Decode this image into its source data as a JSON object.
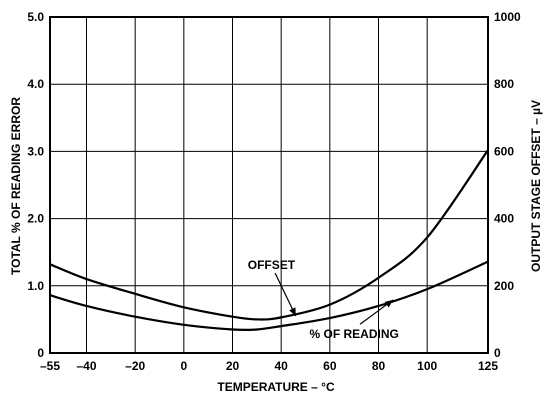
{
  "chart_data": {
    "type": "line",
    "xlabel": "TEMPERATURE – °C",
    "ylabel_left": "TOTAL % OF READING ERROR",
    "ylabel_right": "OUTPUT STAGE OFFSET – µV",
    "xlim": [
      -55,
      125
    ],
    "ylim_left": [
      0,
      5
    ],
    "ylim_right": [
      0,
      1000
    ],
    "x_ticks": [
      -55,
      -40,
      -20,
      0,
      20,
      40,
      60,
      80,
      100,
      125
    ],
    "x_tick_labels": [
      "–55",
      "–40",
      "–20",
      "0",
      "20",
      "40",
      "60",
      "80",
      "100",
      "125"
    ],
    "y_left_ticks": [
      0,
      1,
      2,
      3,
      4,
      5
    ],
    "y_left_tick_labels": [
      "0",
      "1.0",
      "2.0",
      "3.0",
      "4.0",
      "5.0"
    ],
    "y_right_ticks": [
      0,
      200,
      400,
      600,
      800,
      1000
    ],
    "y_right_tick_labels": [
      "0",
      "200",
      "400",
      "600",
      "800",
      "1000"
    ],
    "grid": true,
    "series": [
      {
        "name": "OFFSET",
        "axis": "left",
        "x": [
          -55,
          -40,
          -20,
          0,
          20,
          30,
          40,
          60,
          80,
          100,
          125
        ],
        "y": [
          1.32,
          1.1,
          0.88,
          0.68,
          0.54,
          0.5,
          0.53,
          0.72,
          1.12,
          1.72,
          3.02
        ]
      },
      {
        "name": "% OF READING",
        "axis": "left",
        "x": [
          -55,
          -40,
          -20,
          0,
          20,
          30,
          40,
          60,
          80,
          100,
          125
        ],
        "y": [
          0.86,
          0.7,
          0.54,
          0.42,
          0.35,
          0.35,
          0.4,
          0.52,
          0.7,
          0.95,
          1.36
        ]
      }
    ],
    "annotations": [
      {
        "text": "OFFSET",
        "x": 36,
        "y": 1.25,
        "arrow_to": [
          46,
          0.55
        ]
      },
      {
        "text": "% OF READING",
        "x": 70,
        "y": 0.22,
        "arrow_to": [
          86,
          0.79
        ]
      }
    ]
  }
}
